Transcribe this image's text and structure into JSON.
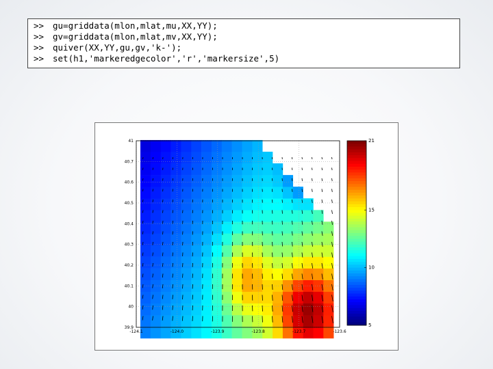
{
  "console": {
    "lines": [
      {
        "prompt": ">>",
        "code": "gu=griddata(mlon,mlat,mu,XX,YY);"
      },
      {
        "prompt": ">>",
        "code": "gv=griddata(mlon,mlat,mv,XX,YY);"
      },
      {
        "prompt": ">>",
        "code": "quiver(XX,YY,gu,gv,'k-');"
      },
      {
        "prompt": ">>",
        "code": "set(h1,'markeredgecolor','r','markersize',5)"
      }
    ]
  },
  "chart_data": {
    "type": "heatmap",
    "colormap": "jet",
    "overlay": "quiver",
    "grid_cols": 20,
    "grid_rows": 16,
    "colorbar": {
      "range": [
        5,
        21
      ],
      "ticks": [
        "21",
        "15",
        "10",
        "5"
      ],
      "tick_values": [
        21,
        15,
        10,
        5
      ]
    },
    "yticks": [
      "41",
      "40.7",
      "40.6",
      "40.5",
      "40.4",
      "40.3",
      "40.2",
      "40.1",
      "40",
      "39.9"
    ],
    "xticks": [
      "-124.1",
      "-124.0",
      "-123.9",
      "-123.8",
      "-123.7",
      "-123.6"
    ],
    "value_range": [
      5,
      21
    ],
    "grid_lines": true
  }
}
